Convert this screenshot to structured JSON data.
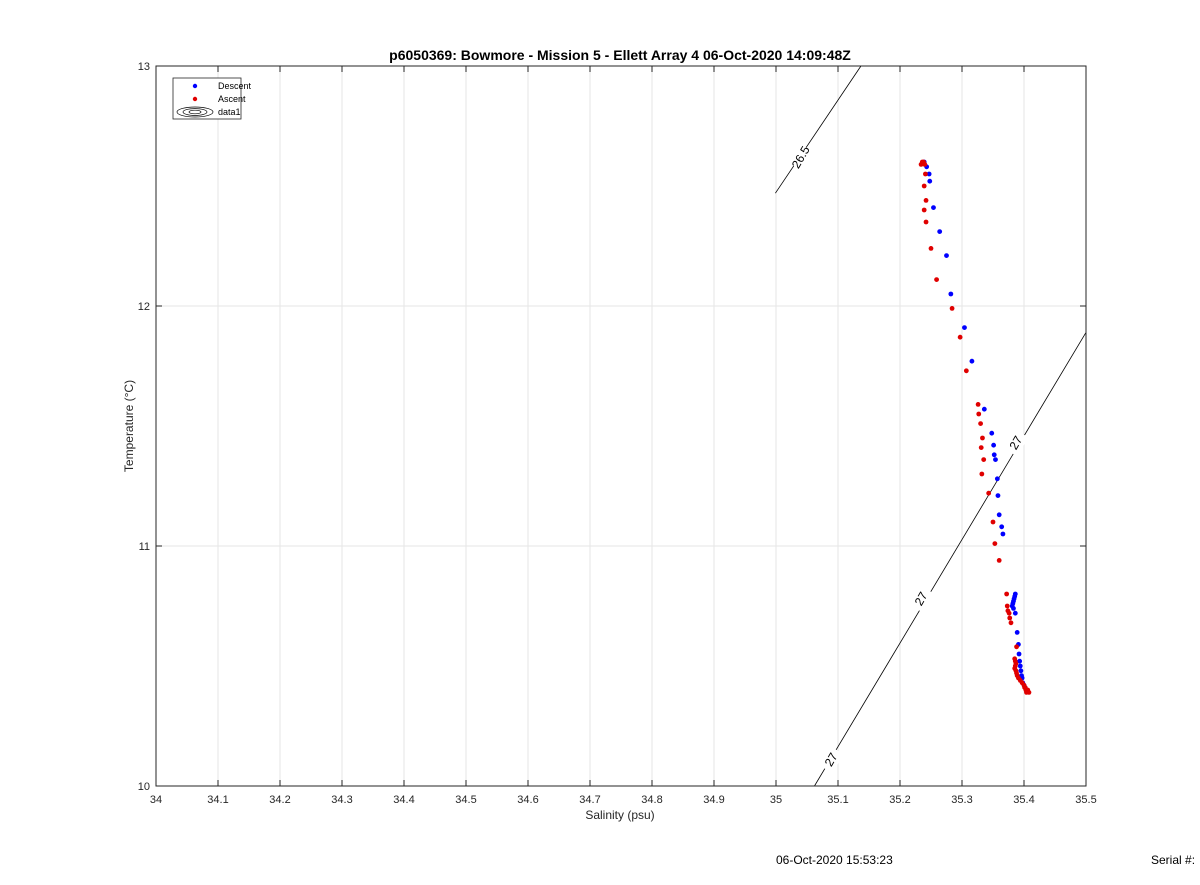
{
  "chart_data": {
    "type": "scatter",
    "title": "p6050369: Bowmore - Mission 5 - Ellett Array 4 06-Oct-2020 14:09:48Z",
    "xlabel": "Salinity (psu)",
    "ylabel": "Temperature (°C)",
    "xlim": [
      34,
      35.5
    ],
    "ylim": [
      10,
      13
    ],
    "xticks": [
      "34",
      "34.1",
      "34.2",
      "34.3",
      "34.4",
      "34.5",
      "34.6",
      "34.7",
      "34.8",
      "34.9",
      "35",
      "35.1",
      "35.2",
      "35.3",
      "35.4",
      "35.5"
    ],
    "yticks": [
      "10",
      "11",
      "12",
      "13"
    ],
    "grid": true,
    "legend_position": "top-left",
    "legend": [
      "Descent",
      "Ascent",
      "data1"
    ],
    "series": [
      {
        "name": "Descent",
        "color": "#0000ff",
        "points": [
          [
            35.239,
            12.6
          ],
          [
            35.243,
            12.58
          ],
          [
            35.247,
            12.55
          ],
          [
            35.248,
            12.52
          ],
          [
            35.254,
            12.41
          ],
          [
            35.264,
            12.31
          ],
          [
            35.275,
            12.21
          ],
          [
            35.282,
            12.05
          ],
          [
            35.304,
            11.91
          ],
          [
            35.316,
            11.77
          ],
          [
            35.336,
            11.57
          ],
          [
            35.348,
            11.47
          ],
          [
            35.351,
            11.42
          ],
          [
            35.352,
            11.38
          ],
          [
            35.354,
            11.36
          ],
          [
            35.357,
            11.28
          ],
          [
            35.358,
            11.21
          ],
          [
            35.36,
            11.13
          ],
          [
            35.364,
            11.08
          ],
          [
            35.366,
            11.05
          ],
          [
            35.386,
            10.8
          ],
          [
            35.385,
            10.79
          ],
          [
            35.384,
            10.78
          ],
          [
            35.383,
            10.77
          ],
          [
            35.382,
            10.76
          ],
          [
            35.381,
            10.75
          ],
          [
            35.383,
            10.74
          ],
          [
            35.386,
            10.72
          ],
          [
            35.389,
            10.64
          ],
          [
            35.391,
            10.59
          ],
          [
            35.392,
            10.55
          ],
          [
            35.393,
            10.52
          ],
          [
            35.394,
            10.5
          ],
          [
            35.395,
            10.48
          ],
          [
            35.396,
            10.46
          ],
          [
            35.397,
            10.45
          ],
          [
            35.398,
            10.43
          ],
          [
            35.4,
            10.42
          ],
          [
            35.402,
            10.41
          ],
          [
            35.404,
            10.4
          ]
        ]
      },
      {
        "name": "Ascent",
        "color": "#e00000",
        "points": [
          [
            35.234,
            12.59
          ],
          [
            35.236,
            12.6
          ],
          [
            35.238,
            12.6
          ],
          [
            35.24,
            12.59
          ],
          [
            35.241,
            12.55
          ],
          [
            35.239,
            12.5
          ],
          [
            35.242,
            12.44
          ],
          [
            35.239,
            12.4
          ],
          [
            35.242,
            12.35
          ],
          [
            35.25,
            12.24
          ],
          [
            35.259,
            12.11
          ],
          [
            35.284,
            11.99
          ],
          [
            35.297,
            11.87
          ],
          [
            35.307,
            11.73
          ],
          [
            35.326,
            11.59
          ],
          [
            35.327,
            11.55
          ],
          [
            35.33,
            11.51
          ],
          [
            35.333,
            11.45
          ],
          [
            35.331,
            11.41
          ],
          [
            35.335,
            11.36
          ],
          [
            35.332,
            11.3
          ],
          [
            35.343,
            11.22
          ],
          [
            35.35,
            11.1
          ],
          [
            35.353,
            11.01
          ],
          [
            35.36,
            10.94
          ],
          [
            35.372,
            10.8
          ],
          [
            35.373,
            10.75
          ],
          [
            35.374,
            10.73
          ],
          [
            35.376,
            10.72
          ],
          [
            35.377,
            10.7
          ],
          [
            35.379,
            10.68
          ],
          [
            35.388,
            10.58
          ],
          [
            35.385,
            10.53
          ],
          [
            35.386,
            10.52
          ],
          [
            35.387,
            10.51
          ],
          [
            35.386,
            10.5
          ],
          [
            35.385,
            10.49
          ],
          [
            35.387,
            10.48
          ],
          [
            35.388,
            10.47
          ],
          [
            35.389,
            10.46
          ],
          [
            35.391,
            10.45
          ],
          [
            35.394,
            10.44
          ],
          [
            35.397,
            10.43
          ],
          [
            35.4,
            10.42
          ],
          [
            35.402,
            10.41
          ],
          [
            35.403,
            10.4
          ],
          [
            35.406,
            10.4
          ],
          [
            35.408,
            10.39
          ],
          [
            35.404,
            10.39
          ],
          [
            35.401,
            10.41
          ]
        ]
      }
    ],
    "contours": [
      {
        "name": "data1",
        "level_label": "26.5",
        "points": [
          [
            34.999,
            12.47
          ],
          [
            35.137,
            13.0
          ]
        ],
        "labels": [
          {
            "text": "26.5",
            "at": [
              35.04,
              12.62
            ],
            "angle": -60
          }
        ]
      },
      {
        "name": "data1",
        "level_label": "27",
        "points": [
          [
            35.062,
            10.0
          ],
          [
            35.5,
            11.89
          ]
        ],
        "labels": [
          {
            "text": "27",
            "at": [
              35.089,
              10.11
            ],
            "angle": -60
          },
          {
            "text": "27",
            "at": [
              35.234,
              10.78
            ],
            "angle": -60
          },
          {
            "text": "27",
            "at": [
              35.387,
              11.43
            ],
            "angle": -60
          }
        ]
      }
    ]
  },
  "footer": {
    "timestamp": "06-Oct-2020 15:53:23",
    "serial_label": "Serial #:"
  }
}
